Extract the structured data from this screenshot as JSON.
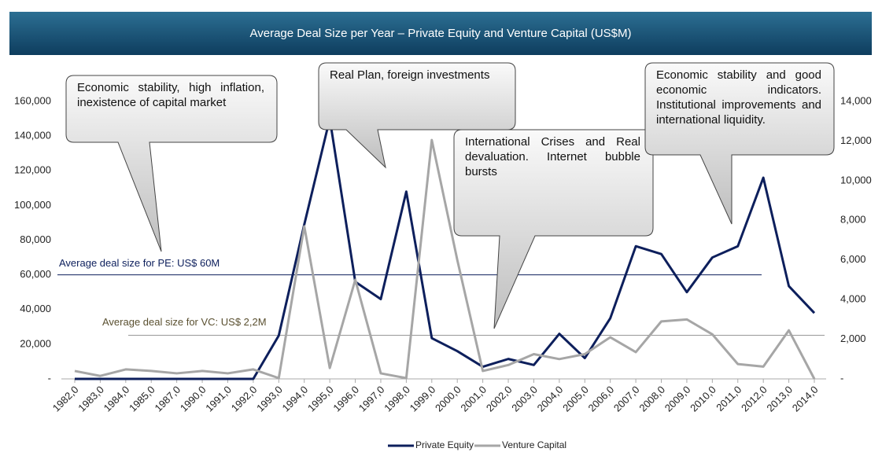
{
  "chart_data": {
    "type": "line",
    "title": "Average Deal Size per Year – Private Equity and Venture Capital (US$M)",
    "categories": [
      "1982,0",
      "1983,0",
      "1984,0",
      "1985,0",
      "1987,0",
      "1990,0",
      "1991,0",
      "1992,0",
      "1993,0",
      "1994,0",
      "1995,0",
      "1996,0",
      "1997,0",
      "1998,0",
      "1999,0",
      "2000,0",
      "2001,0",
      "2002,0",
      "2003,0",
      "2004,0",
      "2005,0",
      "2006,0",
      "2007,0",
      "2008,0",
      "2009,0",
      "2010,0",
      "2011,0",
      "2012,0",
      "2013,0",
      "2014,0"
    ],
    "series": [
      {
        "name": "Private Equity",
        "color": "#0d1f5c",
        "axis": "y",
        "values": [
          0,
          0,
          0,
          0,
          0,
          0,
          0,
          0,
          25000,
          89000,
          150000,
          56000,
          46000,
          108000,
          23500,
          16000,
          7000,
          11500,
          8000,
          26000,
          12000,
          35000,
          76500,
          72000,
          50000,
          70000,
          76500,
          116000,
          53500,
          38000
        ]
      },
      {
        "name": "Venture Capital",
        "color": "#a6a6a6",
        "axis": "y2",
        "values": [
          400,
          150,
          480,
          400,
          280,
          400,
          280,
          480,
          40,
          7700,
          550,
          5000,
          280,
          40,
          12050,
          6000,
          400,
          700,
          1250,
          1000,
          1250,
          2100,
          1350,
          2900,
          3000,
          2250,
          750,
          620,
          2450,
          0
        ]
      }
    ],
    "ylim": [
      0,
      160000
    ],
    "yticks": [
      {
        "value": 0,
        "label": "-"
      },
      {
        "value": 20000,
        "label": "20,000"
      },
      {
        "value": 40000,
        "label": "40,000"
      },
      {
        "value": 60000,
        "label": "60,000"
      },
      {
        "value": 80000,
        "label": "80,000"
      },
      {
        "value": 100000,
        "label": "100,000"
      },
      {
        "value": 120000,
        "label": "120,000"
      },
      {
        "value": 140000,
        "label": "140,000"
      },
      {
        "value": 160000,
        "label": "160,000"
      }
    ],
    "y2lim": [
      0,
      14000
    ],
    "y2ticks": [
      {
        "value": 0,
        "label": "-"
      },
      {
        "value": 2000,
        "label": "2,000"
      },
      {
        "value": 4000,
        "label": "4,000"
      },
      {
        "value": 6000,
        "label": "6,000"
      },
      {
        "value": 8000,
        "label": "8,000"
      },
      {
        "value": 10000,
        "label": "10,000"
      },
      {
        "value": 12000,
        "label": "12,000"
      },
      {
        "value": 14000,
        "label": "14,000"
      }
    ],
    "reference_lines": [
      {
        "label": "Average deal size for  PE: US$ 60M",
        "value": 60000,
        "axis": "y",
        "color": "#0d1f5c"
      },
      {
        "label": "Average deal size for  VC: US$ 2,2M",
        "value": 2200,
        "axis": "y2",
        "color": "#a6a6a6"
      }
    ],
    "annotations": [
      {
        "text": "Economic stability, high inflation, inexistence of capital market"
      },
      {
        "text": "Real Plan, foreign investments"
      },
      {
        "text": "International Crises and Real devaluation. Internet bubble bursts"
      },
      {
        "text": "Economic stability and good economic indicators. Institutional improvements and international liquidity."
      }
    ],
    "legend": "bottom"
  }
}
